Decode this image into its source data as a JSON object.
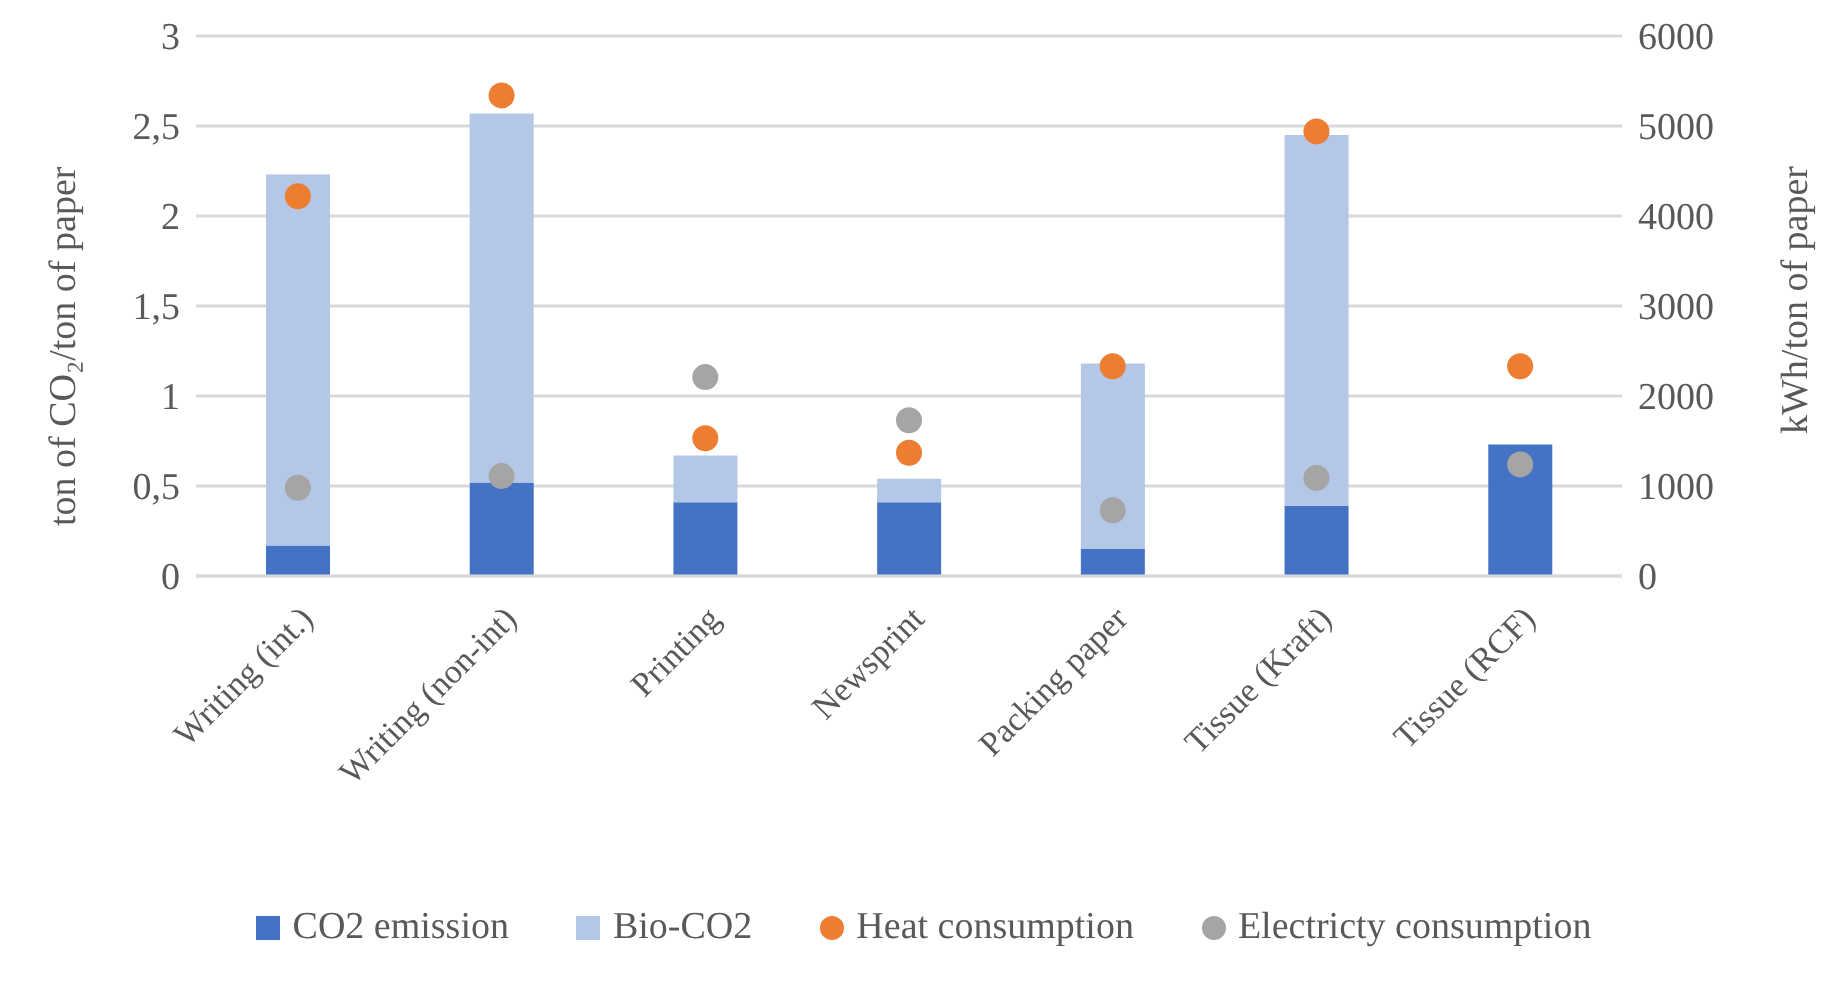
{
  "chart_data": {
    "type": "bar",
    "stacked": true,
    "categories": [
      "Writing (int.)",
      "Writing (non-int)",
      "Printing",
      "Newsprint",
      "Packing paper",
      "Tissue (Kraft)",
      "Tissue (RCF)"
    ],
    "ylabel": "ton of CO₂/ton of paper",
    "y2label": "kWh/ton of paper",
    "ylim": [
      0,
      3
    ],
    "yticks": [
      0,
      {
        "value": 0.5,
        "label": "0,5"
      },
      1,
      {
        "value": 1.5,
        "label": "1,5"
      },
      2,
      {
        "value": 2.5,
        "label": "2,5"
      },
      3
    ],
    "y2lim": [
      0,
      6000
    ],
    "y2ticks": [
      0,
      1000,
      2000,
      3000,
      4000,
      5000,
      6000
    ],
    "grid": "y",
    "legend": "bottom",
    "marker": "circle",
    "series": [
      {
        "name": "CO2 emission",
        "color": "#4472c4",
        "values": [
          0.17,
          0.52,
          0.41,
          0.41,
          0.15,
          0.39,
          0.73
        ]
      },
      {
        "name": "Bio-CO2",
        "color": "#b4c7e7",
        "values": [
          2.06,
          2.05,
          0.26,
          0.13,
          1.03,
          2.06,
          0
        ]
      },
      {
        "name": "Heat consumption",
        "type": "scatter",
        "axis": "y2",
        "color": "#ed7d31",
        "values": [
          4220,
          5340,
          1530,
          1370,
          2330,
          4940,
          2330
        ]
      },
      {
        "name": "Electricty consumption",
        "type": "scatter",
        "axis": "y2",
        "color": "#a5a5a5",
        "values": [
          980,
          1110,
          2210,
          1730,
          730,
          1090,
          1240
        ]
      }
    ]
  }
}
